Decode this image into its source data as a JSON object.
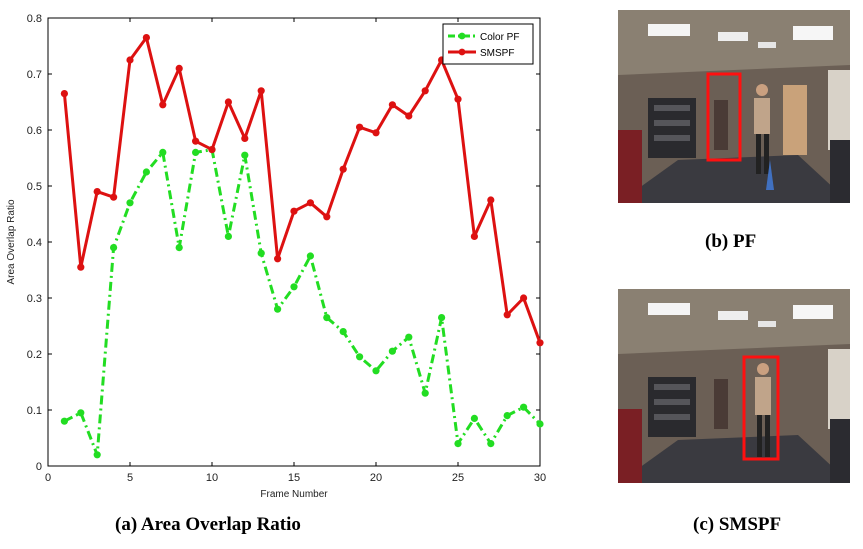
{
  "chart_data": {
    "type": "line",
    "xlabel": "Frame Number",
    "ylabel": "Area Overlap Ratio",
    "xlim": [
      0,
      30
    ],
    "ylim": [
      0,
      0.8
    ],
    "xticks": [
      0,
      5,
      10,
      15,
      20,
      25,
      30
    ],
    "yticks": [
      0,
      0.1,
      0.2,
      0.3,
      0.4,
      0.5,
      0.6,
      0.7,
      0.8
    ],
    "legend_position": "top-right",
    "grid": false,
    "x": [
      1,
      2,
      3,
      4,
      5,
      6,
      7,
      8,
      9,
      10,
      11,
      12,
      13,
      14,
      15,
      16,
      17,
      18,
      19,
      20,
      21,
      22,
      23,
      24,
      25,
      26,
      27,
      28,
      29,
      30
    ],
    "series": [
      {
        "name": "Color PF",
        "color": "#22dd22",
        "style": "dash-dot",
        "values": [
          0.08,
          0.095,
          0.02,
          0.39,
          0.47,
          0.525,
          0.56,
          0.39,
          0.56,
          0.565,
          0.41,
          0.555,
          0.38,
          0.28,
          0.32,
          0.375,
          0.265,
          0.24,
          0.195,
          0.17,
          0.205,
          0.23,
          0.13,
          0.265,
          0.04,
          0.085,
          0.04,
          0.09,
          0.105,
          0.075
        ]
      },
      {
        "name": "SMSPF",
        "color": "#dd1111",
        "style": "solid",
        "values": [
          0.665,
          0.355,
          0.49,
          0.48,
          0.725,
          0.765,
          0.645,
          0.71,
          0.58,
          0.565,
          0.65,
          0.585,
          0.67,
          0.37,
          0.455,
          0.47,
          0.445,
          0.53,
          0.605,
          0.595,
          0.645,
          0.625,
          0.67,
          0.725,
          0.655,
          0.41,
          0.475,
          0.27,
          0.3,
          0.22
        ]
      }
    ]
  },
  "captions": {
    "a": "(a) Area Overlap Ratio",
    "b": "(b) PF",
    "c": "(c) SMSPF"
  },
  "icons": {
    "photo_b": "office-hallway-tracking-photo",
    "photo_c": "office-hallway-tracking-photo"
  }
}
